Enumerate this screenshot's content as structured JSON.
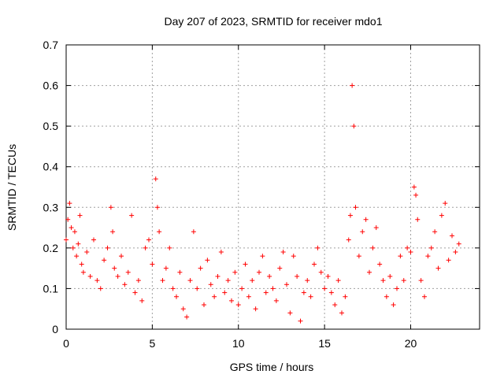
{
  "chart_data": {
    "type": "scatter",
    "title": "Day 207 of 2023, SRMTID for receiver mdo1",
    "xlabel": "GPS time / hours",
    "ylabel": "SRMTID / TECUs",
    "xlim": [
      0,
      24
    ],
    "ylim": [
      0,
      0.7
    ],
    "xticks": [
      0,
      5,
      10,
      15,
      20
    ],
    "yticks": [
      0,
      0.1,
      0.2,
      0.3,
      0.4,
      0.5,
      0.6,
      0.7
    ],
    "grid": true,
    "marker": "+",
    "series": [
      {
        "name": "SRMTID",
        "color": "#ff0000",
        "x": [
          0.0,
          0.1,
          0.2,
          0.3,
          0.4,
          0.5,
          0.6,
          0.7,
          0.8,
          0.9,
          1.0,
          1.2,
          1.4,
          1.6,
          1.8,
          2.0,
          2.2,
          2.4,
          2.6,
          2.7,
          2.8,
          3.0,
          3.2,
          3.4,
          3.6,
          3.8,
          4.0,
          4.2,
          4.4,
          4.6,
          4.8,
          5.0,
          5.2,
          5.3,
          5.4,
          5.6,
          5.8,
          6.0,
          6.2,
          6.4,
          6.6,
          6.8,
          7.0,
          7.2,
          7.4,
          7.6,
          7.8,
          8.0,
          8.2,
          8.4,
          8.6,
          8.8,
          9.0,
          9.2,
          9.4,
          9.6,
          9.8,
          10.0,
          10.2,
          10.4,
          10.6,
          10.8,
          11.0,
          11.2,
          11.4,
          11.6,
          11.8,
          12.0,
          12.2,
          12.4,
          12.6,
          12.8,
          13.0,
          13.2,
          13.4,
          13.6,
          13.8,
          14.0,
          14.2,
          14.4,
          14.6,
          14.8,
          15.0,
          15.2,
          15.4,
          15.6,
          15.8,
          16.0,
          16.2,
          16.4,
          16.5,
          16.6,
          16.7,
          16.8,
          17.0,
          17.2,
          17.4,
          17.6,
          17.8,
          18.0,
          18.2,
          18.4,
          18.6,
          18.8,
          19.0,
          19.2,
          19.4,
          19.6,
          19.8,
          20.0,
          20.2,
          20.3,
          20.4,
          20.6,
          20.8,
          21.0,
          21.2,
          21.4,
          21.6,
          21.8,
          22.0,
          22.2,
          22.4,
          22.6,
          22.8
        ],
        "y": [
          0.22,
          0.27,
          0.31,
          0.25,
          0.2,
          0.24,
          0.18,
          0.21,
          0.28,
          0.16,
          0.14,
          0.19,
          0.13,
          0.22,
          0.12,
          0.1,
          0.17,
          0.2,
          0.3,
          0.24,
          0.15,
          0.13,
          0.18,
          0.11,
          0.14,
          0.28,
          0.09,
          0.12,
          0.07,
          0.2,
          0.22,
          0.16,
          0.37,
          0.3,
          0.24,
          0.12,
          0.15,
          0.2,
          0.1,
          0.08,
          0.14,
          0.05,
          0.03,
          0.12,
          0.24,
          0.1,
          0.15,
          0.06,
          0.17,
          0.11,
          0.08,
          0.13,
          0.19,
          0.09,
          0.12,
          0.07,
          0.14,
          0.06,
          0.1,
          0.16,
          0.08,
          0.12,
          0.05,
          0.14,
          0.18,
          0.09,
          0.13,
          0.1,
          0.07,
          0.15,
          0.19,
          0.11,
          0.04,
          0.18,
          0.13,
          0.02,
          0.09,
          0.12,
          0.08,
          0.16,
          0.2,
          0.14,
          0.1,
          0.13,
          0.09,
          0.06,
          0.12,
          0.04,
          0.08,
          0.22,
          0.28,
          0.6,
          0.5,
          0.3,
          0.18,
          0.24,
          0.27,
          0.14,
          0.2,
          0.25,
          0.16,
          0.12,
          0.08,
          0.13,
          0.06,
          0.1,
          0.18,
          0.12,
          0.2,
          0.19,
          0.35,
          0.33,
          0.27,
          0.12,
          0.08,
          0.18,
          0.2,
          0.24,
          0.15,
          0.28,
          0.31,
          0.17,
          0.23,
          0.19,
          0.21
        ]
      }
    ]
  }
}
